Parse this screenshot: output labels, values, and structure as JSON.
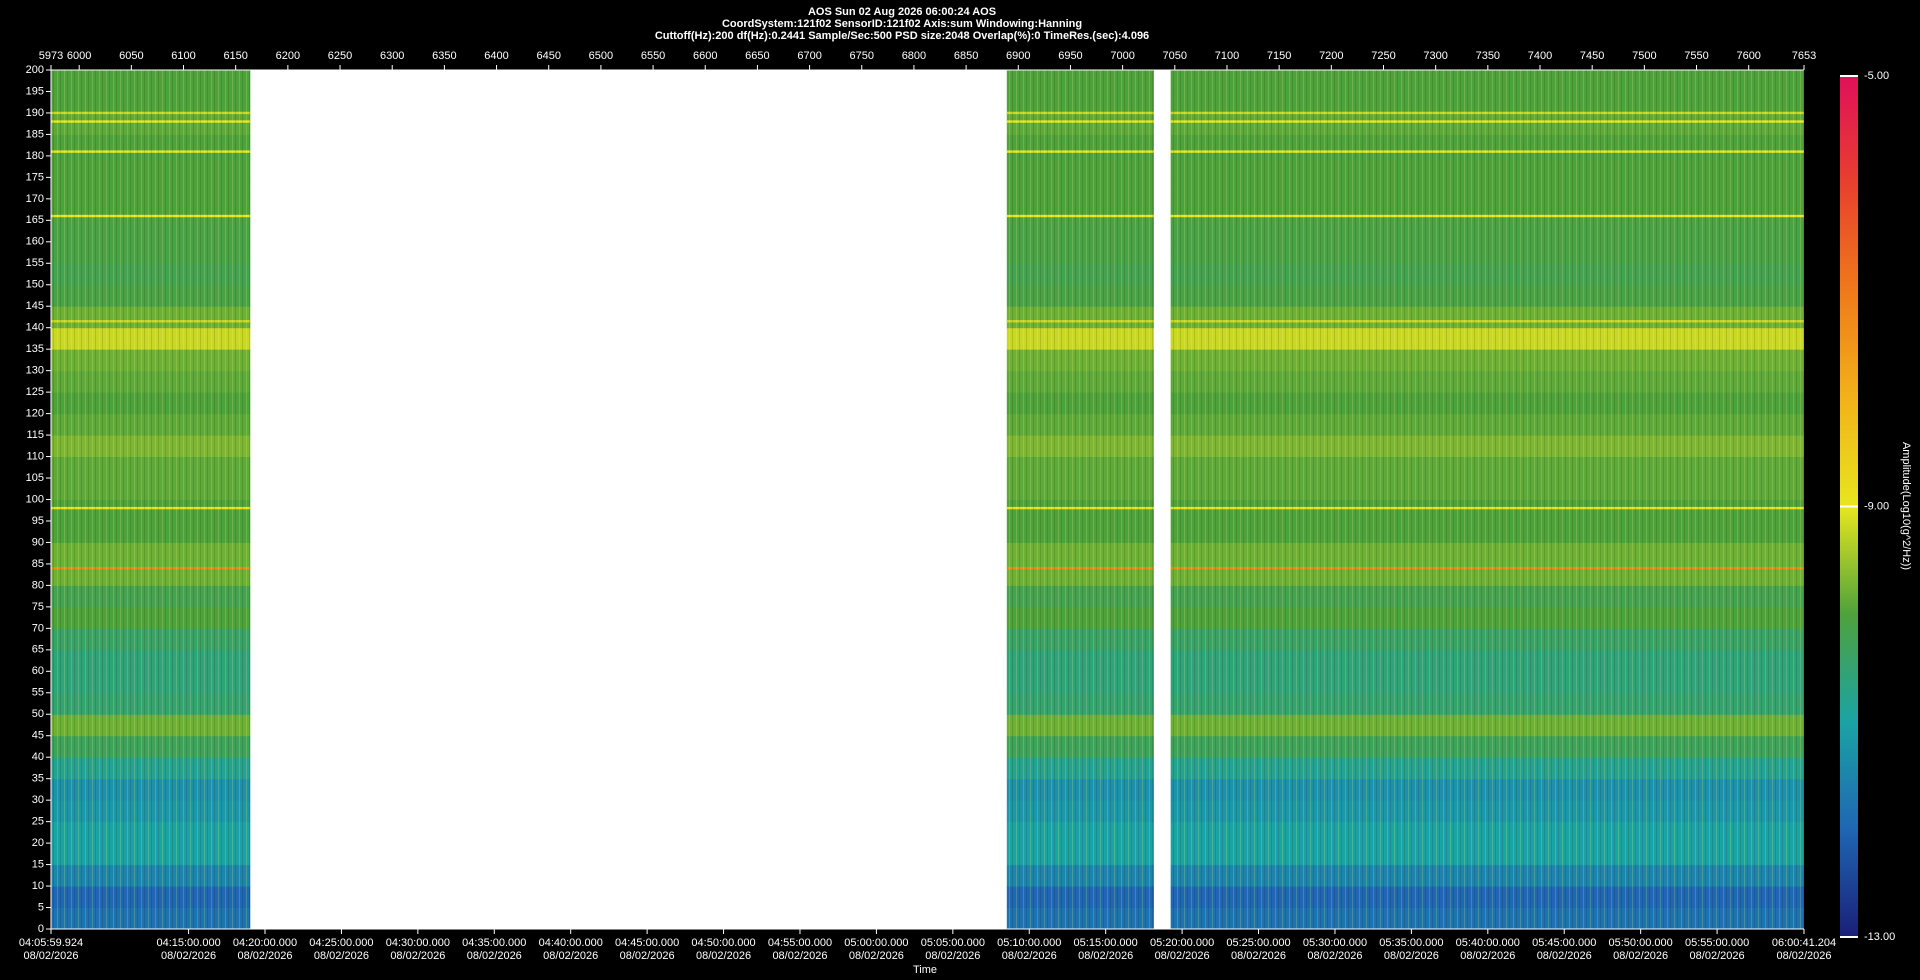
{
  "chart_data": {
    "type": "spectrogram",
    "title": "AOS  Sun 02 Aug 2026 06:00:24  AOS",
    "subtitle": "CoordSystem:121f02   SensorID:121f02   Axis:sum   Windowing:Hanning",
    "info": "Cuttoff(Hz):200    df(Hz):0.2441    Sample/Sec:500    PSD size:2048    Overlap(%):0    TimeRes.(sec):4.096",
    "xlabel": "Time",
    "colorbar_label": "Amplitude(Log10(g^2/Hz))",
    "xlim": [
      5973,
      7653
    ],
    "xticks": [
      5973,
      6000,
      6050,
      6100,
      6150,
      6200,
      6250,
      6300,
      6350,
      6400,
      6450,
      6500,
      6550,
      6600,
      6650,
      6700,
      6750,
      6800,
      6850,
      6900,
      6950,
      7000,
      7050,
      7100,
      7150,
      7200,
      7250,
      7300,
      7350,
      7400,
      7450,
      7500,
      7550,
      7600,
      7653
    ],
    "x2lim": [
      14759.924,
      21641.204
    ],
    "x2ticks": [
      {
        "value": 14759.924,
        "label": "04:05:59.924\n08/02/2026"
      },
      {
        "value": 15300,
        "label": "04:15:00.000\n08/02/2026"
      },
      {
        "value": 15600,
        "label": "04:20:00.000\n08/02/2026"
      },
      {
        "value": 15900,
        "label": "04:25:00.000\n08/02/2026"
      },
      {
        "value": 16200,
        "label": "04:30:00.000\n08/02/2026"
      },
      {
        "value": 16500,
        "label": "04:35:00.000\n08/02/2026"
      },
      {
        "value": 16800,
        "label": "04:40:00.000\n08/02/2026"
      },
      {
        "value": 17100,
        "label": "04:45:00.000\n08/02/2026"
      },
      {
        "value": 17400,
        "label": "04:50:00.000\n08/02/2026"
      },
      {
        "value": 17700,
        "label": "04:55:00.000\n08/02/2026"
      },
      {
        "value": 18000,
        "label": "05:00:00.000\n08/02/2026"
      },
      {
        "value": 18300,
        "label": "05:05:00.000\n08/02/2026"
      },
      {
        "value": 18600,
        "label": "05:10:00.000\n08/02/2026"
      },
      {
        "value": 18900,
        "label": "05:15:00.000\n08/02/2026"
      },
      {
        "value": 19200,
        "label": "05:20:00.000\n08/02/2026"
      },
      {
        "value": 19500,
        "label": "05:25:00.000\n08/02/2026"
      },
      {
        "value": 19800,
        "label": "05:30:00.000\n08/02/2026"
      },
      {
        "value": 20100,
        "label": "05:35:00.000\n08/02/2026"
      },
      {
        "value": 20400,
        "label": "05:40:00.000\n08/02/2026"
      },
      {
        "value": 20700,
        "label": "05:45:00.000\n08/02/2026"
      },
      {
        "value": 21000,
        "label": "05:50:00.000\n08/02/2026"
      },
      {
        "value": 21300,
        "label": "05:55:00.000\n08/02/2026"
      },
      {
        "value": 21641.204,
        "label": "06:00:41.204\n08/02/2026"
      }
    ],
    "ylim": [
      0,
      200
    ],
    "yticks": [
      0,
      5,
      10,
      15,
      20,
      25,
      30,
      35,
      40,
      45,
      50,
      55,
      60,
      65,
      70,
      75,
      80,
      85,
      90,
      95,
      100,
      105,
      110,
      115,
      120,
      125,
      130,
      135,
      140,
      145,
      150,
      155,
      160,
      165,
      170,
      175,
      180,
      185,
      190,
      195,
      200
    ],
    "clim": [
      -13,
      -5
    ],
    "cticks": [
      {
        "value": -5,
        "label": "-5.00"
      },
      {
        "value": -9,
        "label": "-9.00"
      },
      {
        "value": -13,
        "label": "-13.00"
      }
    ],
    "colormap": [
      "#1a1f78",
      "#1f66b3",
      "#1ba3a4",
      "#4ea23c",
      "#e8e61e",
      "#f2b21a",
      "#ef7a1a",
      "#e8402e",
      "#e0105a"
    ],
    "segments": [
      [
        5973,
        6164
      ],
      [
        6889,
        7030
      ],
      [
        7046,
        7653
      ]
    ],
    "freq_bins": [
      0,
      5,
      10,
      15,
      20,
      25,
      30,
      35,
      40,
      45,
      50,
      55,
      60,
      65,
      70,
      75,
      80,
      85,
      90,
      95,
      100,
      105,
      110,
      115,
      120,
      125,
      130,
      135,
      140,
      145,
      150,
      155,
      160,
      165,
      170,
      175,
      180,
      185,
      190,
      195,
      200
    ],
    "amplitudes": [
      -11.8,
      -12,
      -11.5,
      -11,
      -11,
      -11.2,
      -11.3,
      -10.8,
      -10.3,
      -9.8,
      -10.5,
      -10.6,
      -10.6,
      -10.4,
      -10,
      -10.2,
      -9.8,
      -9.8,
      -10,
      -10,
      -9.9,
      -9.9,
      -9.7,
      -9.9,
      -10,
      -9.9,
      -9.8,
      -9.2,
      -9.8,
      -10.1,
      -10.2,
      -10.1,
      -10.1,
      -10,
      -10,
      -10,
      -10,
      -9.9,
      -10,
      -10
    ],
    "lines": [
      {
        "freq": 84,
        "amplitude": -7.3
      },
      {
        "freq": 98,
        "amplitude": -8.9
      },
      {
        "freq": 141.5,
        "amplitude": -9.2
      },
      {
        "freq": 166,
        "amplitude": -9
      },
      {
        "freq": 181,
        "amplitude": -9
      },
      {
        "freq": 188,
        "amplitude": -9
      },
      {
        "freq": 190,
        "amplitude": -9.2
      }
    ]
  }
}
